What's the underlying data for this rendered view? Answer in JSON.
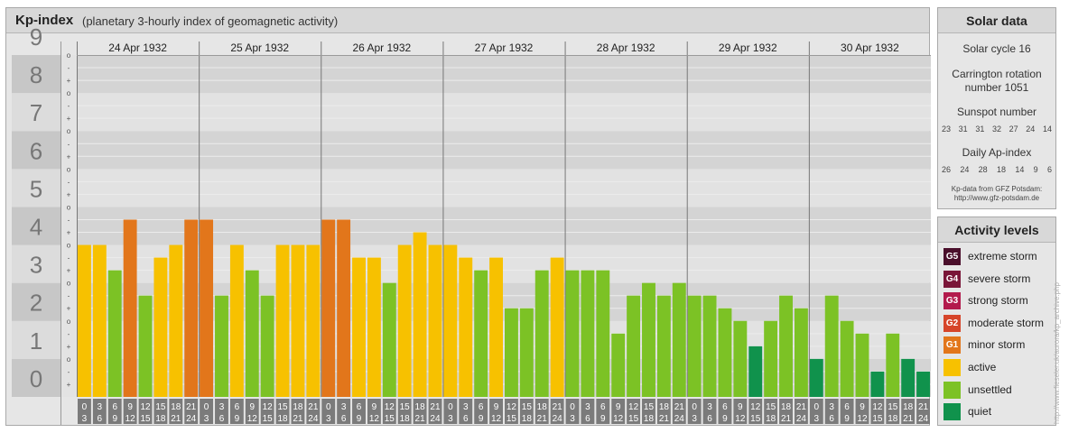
{
  "title": "Kp-index",
  "subtitle": "(planetary 3-hourly index of geomagnetic activity)",
  "chart_data": {
    "type": "bar",
    "ylim": [
      0,
      9
    ],
    "y_ticks": [
      "0",
      "1",
      "2",
      "3",
      "4",
      "5",
      "6",
      "7",
      "8",
      "9"
    ],
    "y_minor_ticks": [
      "o",
      "+",
      "-"
    ],
    "days": [
      "24 Apr 1932",
      "25 Apr 1932",
      "26 Apr 1932",
      "27 Apr 1932",
      "28 Apr 1932",
      "29 Apr 1932",
      "30 Apr 1932"
    ],
    "intervals": [
      [
        "0",
        "3"
      ],
      [
        "3",
        "6"
      ],
      [
        "6",
        "9"
      ],
      [
        "9",
        "12"
      ],
      [
        "12",
        "15"
      ],
      [
        "15",
        "18"
      ],
      [
        "18",
        "21"
      ],
      [
        "21",
        "24"
      ]
    ],
    "values": [
      4,
      4,
      3.333,
      4.667,
      2.667,
      3.667,
      4,
      4.667,
      4.667,
      2.667,
      4,
      3.333,
      2.667,
      4,
      4,
      4,
      4.667,
      4.667,
      3.667,
      3.667,
      3,
      4,
      4.333,
      4,
      4,
      3.667,
      3.333,
      3.667,
      2.333,
      2.333,
      3.333,
      3.667,
      3.333,
      3.333,
      3.333,
      1.667,
      2.667,
      3,
      2.667,
      3,
      2.667,
      2.667,
      2.333,
      2,
      1.333,
      2,
      2.667,
      2.333,
      1,
      2.667,
      2,
      1.667,
      0.667,
      1.667,
      1,
      0.667
    ],
    "grid": true
  },
  "solar": {
    "heading": "Solar data",
    "cycle": "Solar cycle 16",
    "carrington_1": "Carrington rotation",
    "carrington_2": "number 1051",
    "sunspot_label": "Sunspot number",
    "sunspot": [
      "23",
      "31",
      "31",
      "32",
      "27",
      "24",
      "14"
    ],
    "ap_label": "Daily Ap-index",
    "ap": [
      "26",
      "24",
      "28",
      "18",
      "14",
      "9",
      "6"
    ],
    "credit_1": "Kp-data from GFZ Potsdam:",
    "credit_2": "http://www.gfz-potsdam.de"
  },
  "activity": {
    "heading": "Activity levels",
    "levels": [
      {
        "code": "G5",
        "label": "extreme storm",
        "color": "#4a0f2b"
      },
      {
        "code": "G4",
        "label": "severe storm",
        "color": "#7a1538"
      },
      {
        "code": "G3",
        "label": "strong storm",
        "color": "#b31a4c"
      },
      {
        "code": "G2",
        "label": "moderate storm",
        "color": "#d6452a"
      },
      {
        "code": "G1",
        "label": "minor storm",
        "color": "#e2761b"
      },
      {
        "code": "",
        "label": "active",
        "color": "#f7c100"
      },
      {
        "code": "",
        "label": "unsettled",
        "color": "#7cc225"
      },
      {
        "code": "",
        "label": "quiet",
        "color": "#10924c"
      }
    ]
  },
  "colors": {
    "quiet": "#10924c",
    "unsettled": "#7cc225",
    "active": "#f7c100",
    "minor": "#e2761b",
    "moderate": "#d6452a"
  },
  "side_url": "http://www.fieseler.uk/aurora/kp_archive.php"
}
